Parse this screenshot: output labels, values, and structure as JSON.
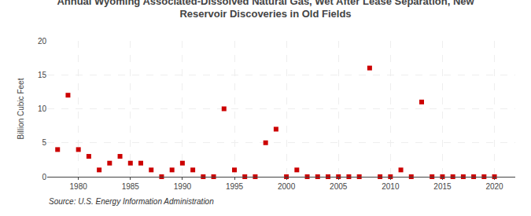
{
  "chart_data": {
    "type": "scatter",
    "title": "Annual Wyoming Associated-Dissolved Natural Gas, Wet After Lease Separation, New\nReservoir Discoveries in Old Fields",
    "ylabel": "Billion Cubic Feet",
    "annotations": [
      "Source: U.S. Energy Information Administration"
    ],
    "x": [
      1978,
      1979,
      1980,
      1981,
      1982,
      1983,
      1984,
      1985,
      1986,
      1987,
      1988,
      1989,
      1990,
      1991,
      1992,
      1993,
      1994,
      1995,
      1996,
      1997,
      1998,
      1999,
      2000,
      2001,
      2002,
      2003,
      2004,
      2005,
      2006,
      2007,
      2008,
      2009,
      2010,
      2011,
      2012,
      2013,
      2014,
      2015,
      2016,
      2017,
      2018,
      2019,
      2020
    ],
    "values": [
      4.0,
      12.0,
      4.0,
      3.0,
      1.0,
      2.0,
      3.0,
      2.0,
      2.0,
      1.0,
      0.0,
      1.0,
      2.0,
      1.0,
      0.0,
      0.0,
      10.0,
      1.0,
      0.0,
      0.0,
      5.0,
      7.0,
      0.0,
      1.0,
      0.0,
      0.0,
      0.0,
      0.0,
      0.0,
      0.0,
      16.0,
      0.0,
      0.0,
      1.0,
      0.0,
      11.0,
      0.0,
      0.0,
      0.0,
      0.0,
      0.0,
      0.0,
      0.0
    ],
    "color": "#cc0000",
    "marker": "square",
    "xlim": [
      1977,
      2022
    ],
    "xticks": [
      1980,
      1985,
      1990,
      1995,
      2000,
      2005,
      2010,
      2015,
      2020
    ],
    "ylim": [
      0,
      20
    ],
    "yticks": [
      0,
      5,
      10,
      15,
      20
    ],
    "grid": true
  }
}
